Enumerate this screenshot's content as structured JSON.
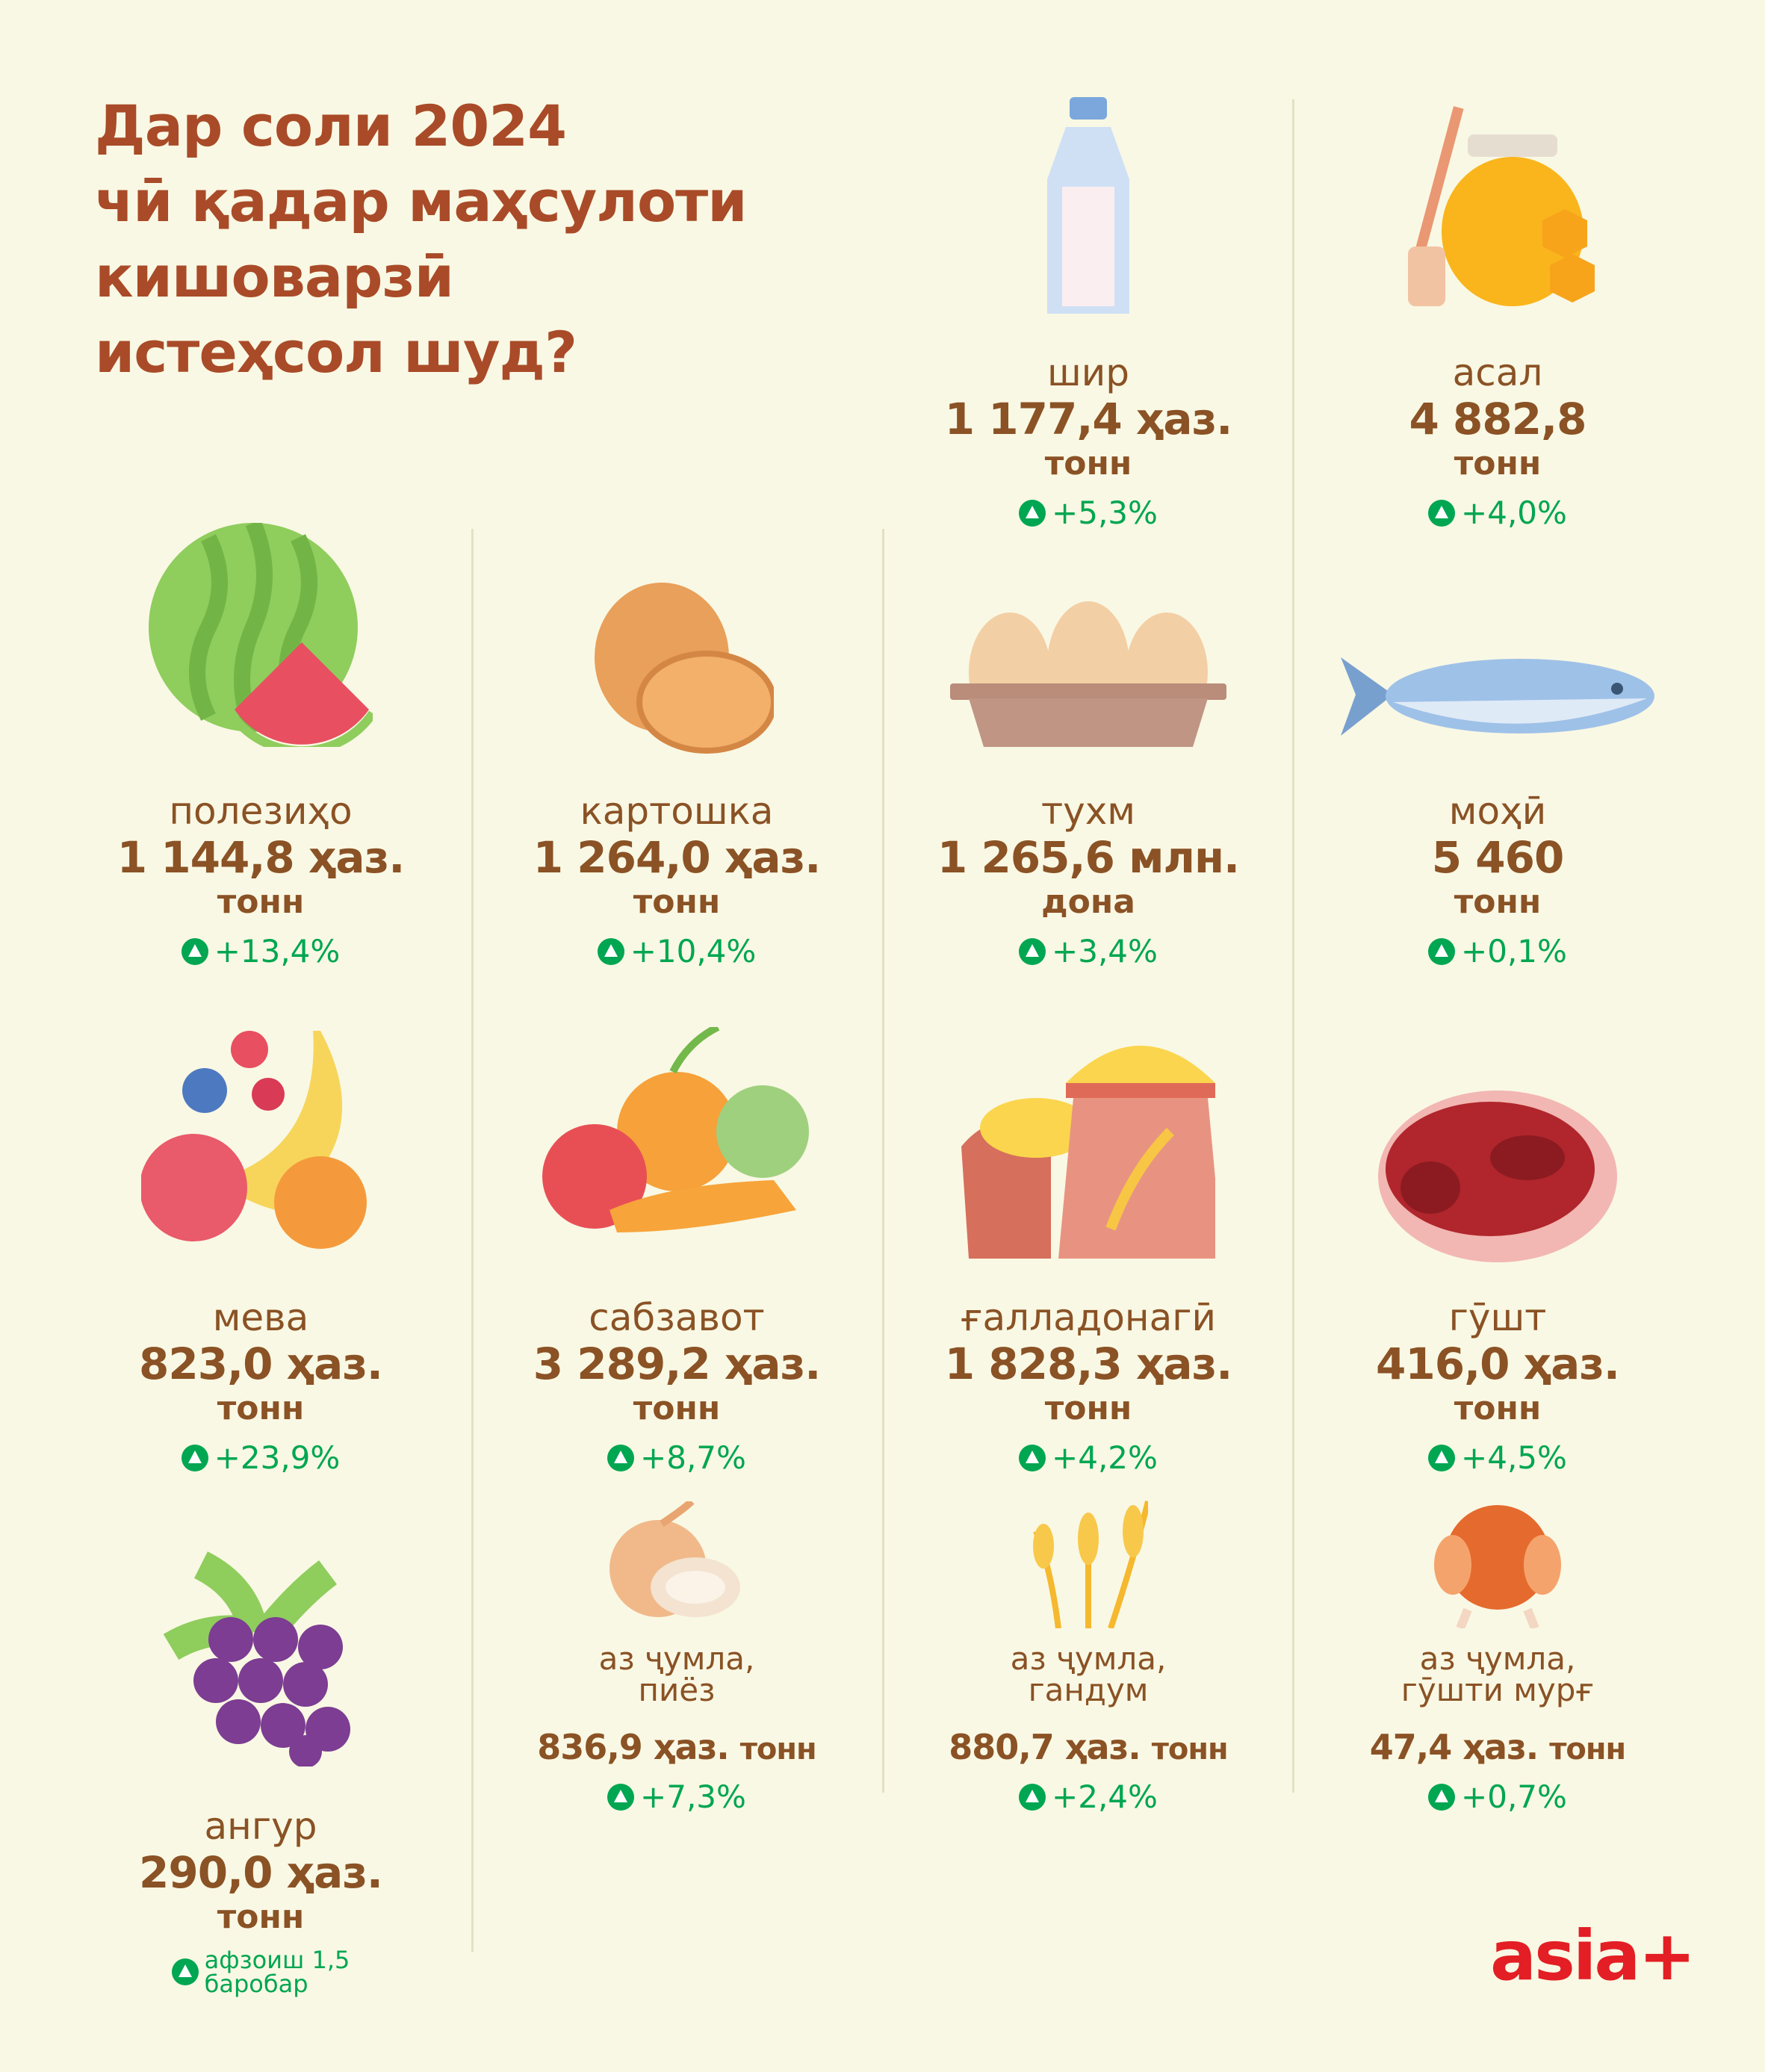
{
  "title_lines": [
    "Дар соли 2024",
    "чӣ қадар маҳсулоти",
    "кишоварзӣ",
    "истеҳсол шуд?"
  ],
  "colors": {
    "background": "#f9f8e4",
    "title": "#a94b28",
    "text": "#8a5225",
    "growth": "#00a651",
    "logo": "#e31e24"
  },
  "products": [
    {
      "id": "milk",
      "icon": "milk-bottle-icon",
      "name": "шир",
      "value": "1 177,4 ҳаз.",
      "unit": "тонн",
      "change": "+5,3%"
    },
    {
      "id": "honey",
      "icon": "honey-jar-icon",
      "name": "асал",
      "value": "4 882,8",
      "unit": "тонн",
      "change": "+4,0%"
    },
    {
      "id": "melons",
      "icon": "watermelon-icon",
      "name": "полезиҳо",
      "value": "1 144,8 ҳаз.",
      "unit": "тонн",
      "change": "+13,4%"
    },
    {
      "id": "potato",
      "icon": "potato-icon",
      "name": "картошка",
      "value": "1 264,0 ҳаз.",
      "unit": "тонн",
      "change": "+10,4%"
    },
    {
      "id": "eggs",
      "icon": "eggs-icon",
      "name": "тухм",
      "value": "1 265,6 млн.",
      "unit": "дона",
      "change": "+3,4%"
    },
    {
      "id": "fish",
      "icon": "fish-icon",
      "name": "моҳӣ",
      "value": "5 460",
      "unit": "тонн",
      "change": "+0,1%"
    },
    {
      "id": "fruit",
      "icon": "fruit-icon",
      "name": "мева",
      "value": "823,0 ҳаз.",
      "unit": "тонн",
      "change": "+23,9%"
    },
    {
      "id": "vegetables",
      "icon": "vegetables-icon",
      "name": "сабзавот",
      "value": "3 289,2 ҳаз.",
      "unit": "тонн",
      "change": "+8,7%"
    },
    {
      "id": "grain",
      "icon": "grain-sack-icon",
      "name": "ғалладонагӣ",
      "value": "1 828,3 ҳаз.",
      "unit": "тонн",
      "change": "+4,2%"
    },
    {
      "id": "meat",
      "icon": "meat-icon",
      "name": "гӯшт",
      "value": "416,0 ҳаз.",
      "unit": "тонн",
      "change": "+4,5%"
    },
    {
      "id": "grapes",
      "icon": "grapes-icon",
      "name": "ангур",
      "value": "290,0 ҳаз.",
      "unit": "тонн",
      "change_lines": [
        "афзоиш 1,5",
        "баробар"
      ]
    },
    {
      "id": "onion",
      "icon": "onion-icon",
      "name_lines": [
        "аз ҷумла,",
        "пиёз"
      ],
      "value": "836,9 ҳаз.",
      "unit": "тонн",
      "change": "+7,3%"
    },
    {
      "id": "wheat",
      "icon": "wheat-icon",
      "name_lines": [
        "аз ҷумла,",
        "гандум"
      ],
      "value": "880,7 ҳаз.",
      "unit": "тонн",
      "change": "+2,4%"
    },
    {
      "id": "poultry",
      "icon": "chicken-icon",
      "name_lines": [
        "аз ҷумла,",
        "гӯшти мурғ"
      ],
      "value": "47,4 ҳаз.",
      "unit": "тонн",
      "change": "+0,7%"
    }
  ],
  "logo": "asia+"
}
